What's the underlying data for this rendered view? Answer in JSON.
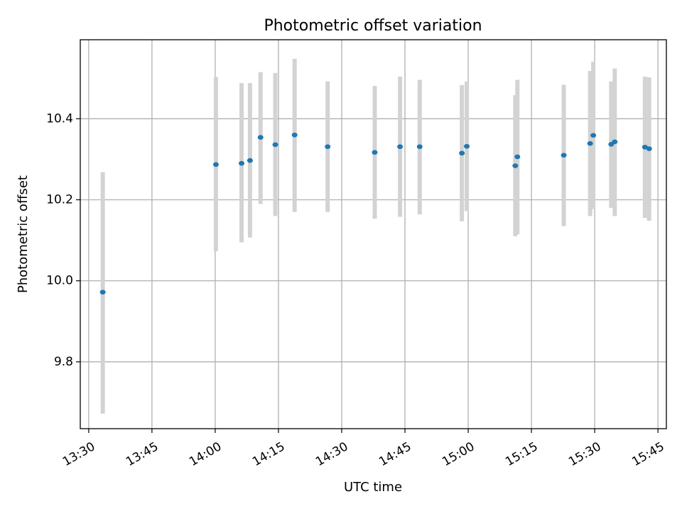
{
  "chart_data": {
    "type": "scatter",
    "title": "Photometric offset variation",
    "xlabel": "UTC time",
    "ylabel": "Photometric offset",
    "x_is_time": true,
    "xlim": [
      "13:28",
      "15:47"
    ],
    "ylim": [
      9.635,
      10.595
    ],
    "xticks": [
      "13:30",
      "13:45",
      "14:00",
      "14:15",
      "14:30",
      "14:45",
      "15:00",
      "15:15",
      "15:30",
      "15:45"
    ],
    "yticks": [
      9.8,
      10.0,
      10.2,
      10.4
    ],
    "ytick_labels": [
      "9.8",
      "10.0",
      "10.2",
      "10.4"
    ],
    "grid": true,
    "colors": {
      "marker": "#1f77b4",
      "errorbar": "#d3d3d3",
      "grid": "#b0b0b0"
    },
    "points": [
      {
        "t": "13:33:20",
        "y": 9.972,
        "lo": 9.672,
        "hi": 10.268
      },
      {
        "t": "14:00:10",
        "y": 10.287,
        "lo": 10.073,
        "hi": 10.503
      },
      {
        "t": "14:06:15",
        "y": 10.29,
        "lo": 10.095,
        "hi": 10.488
      },
      {
        "t": "14:08:15",
        "y": 10.297,
        "lo": 10.107,
        "hi": 10.488
      },
      {
        "t": "14:10:45",
        "y": 10.354,
        "lo": 10.19,
        "hi": 10.515
      },
      {
        "t": "14:14:15",
        "y": 10.336,
        "lo": 10.16,
        "hi": 10.513
      },
      {
        "t": "14:18:50",
        "y": 10.36,
        "lo": 10.17,
        "hi": 10.548
      },
      {
        "t": "14:26:40",
        "y": 10.331,
        "lo": 10.17,
        "hi": 10.492
      },
      {
        "t": "14:37:50",
        "y": 10.317,
        "lo": 10.153,
        "hi": 10.481
      },
      {
        "t": "14:43:50",
        "y": 10.331,
        "lo": 10.158,
        "hi": 10.504
      },
      {
        "t": "14:48:30",
        "y": 10.331,
        "lo": 10.164,
        "hi": 10.496
      },
      {
        "t": "14:58:30",
        "y": 10.315,
        "lo": 10.147,
        "hi": 10.483
      },
      {
        "t": "14:59:40",
        "y": 10.332,
        "lo": 10.172,
        "hi": 10.492
      },
      {
        "t": "15:11:10",
        "y": 10.284,
        "lo": 10.11,
        "hi": 10.458
      },
      {
        "t": "15:11:40",
        "y": 10.306,
        "lo": 10.115,
        "hi": 10.496
      },
      {
        "t": "15:22:40",
        "y": 10.31,
        "lo": 10.135,
        "hi": 10.484
      },
      {
        "t": "15:28:55",
        "y": 10.339,
        "lo": 10.16,
        "hi": 10.518
      },
      {
        "t": "15:29:40",
        "y": 10.359,
        "lo": 10.177,
        "hi": 10.541
      },
      {
        "t": "15:33:55",
        "y": 10.337,
        "lo": 10.18,
        "hi": 10.492
      },
      {
        "t": "15:34:45",
        "y": 10.343,
        "lo": 10.16,
        "hi": 10.524
      },
      {
        "t": "15:41:55",
        "y": 10.33,
        "lo": 10.155,
        "hi": 10.504
      },
      {
        "t": "15:42:55",
        "y": 10.326,
        "lo": 10.148,
        "hi": 10.502
      }
    ]
  }
}
